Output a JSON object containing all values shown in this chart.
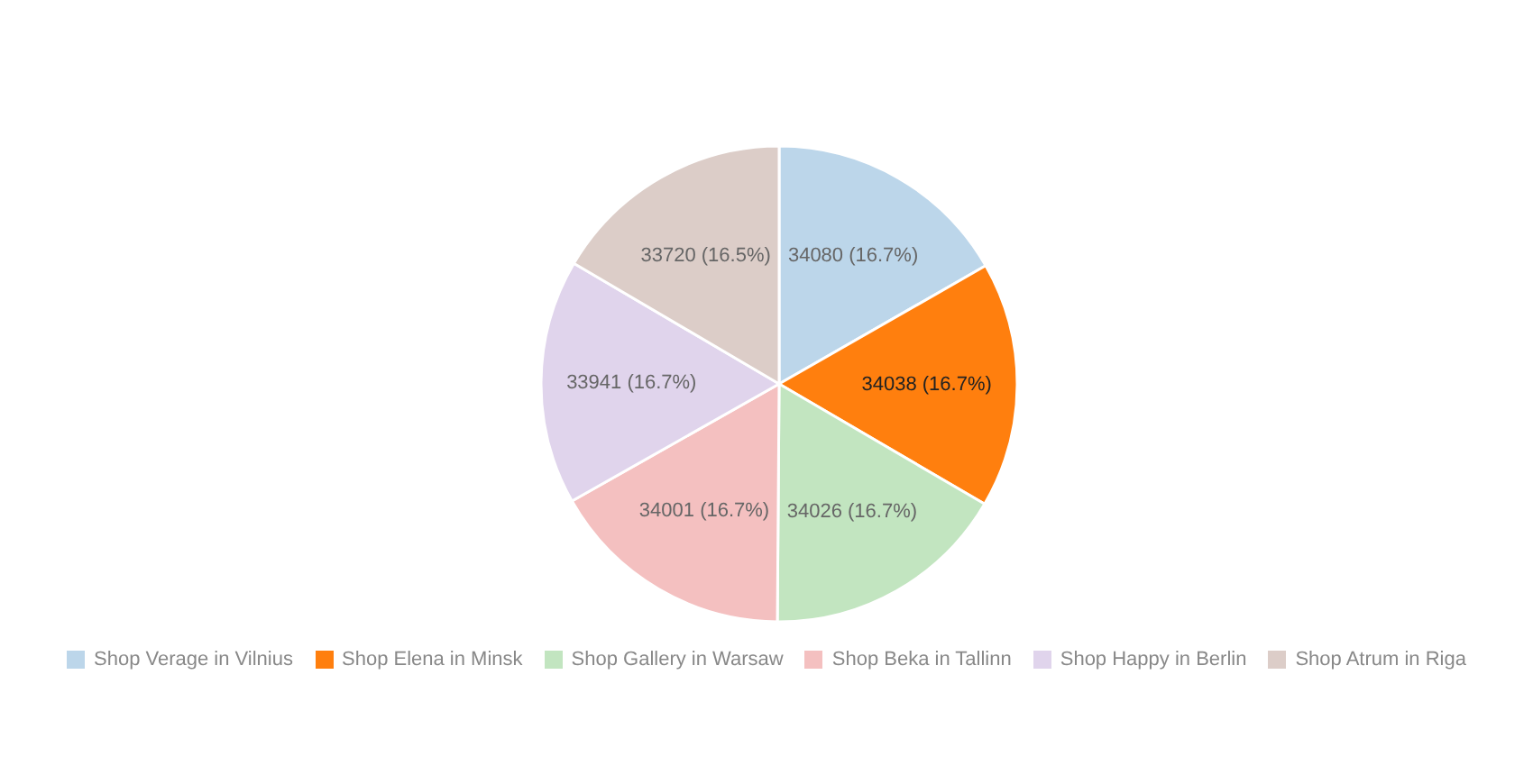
{
  "chart_data": {
    "type": "pie",
    "categories": [
      "Shop Verage in Vilnius",
      "Shop Elena in Minsk",
      "Shop Gallery in Warsaw",
      "Shop Beka in Tallinn",
      "Shop Happy in Berlin",
      "Shop Atrum in Riga"
    ],
    "values": [
      34080,
      34038,
      34026,
      34001,
      33941,
      33720
    ],
    "value_labels": [
      "34080 (16.7%)",
      "34038 (16.7%)",
      "34026 (16.7%)",
      "34001 (16.7%)",
      "33941 (16.7%)",
      "33720 (16.5%)"
    ],
    "colors": [
      "#bcd6ea",
      "#ff7f0e",
      "#c2e5c0",
      "#f4c0c0",
      "#e0d4ec",
      "#dccdc8"
    ],
    "legend": "bottom"
  }
}
